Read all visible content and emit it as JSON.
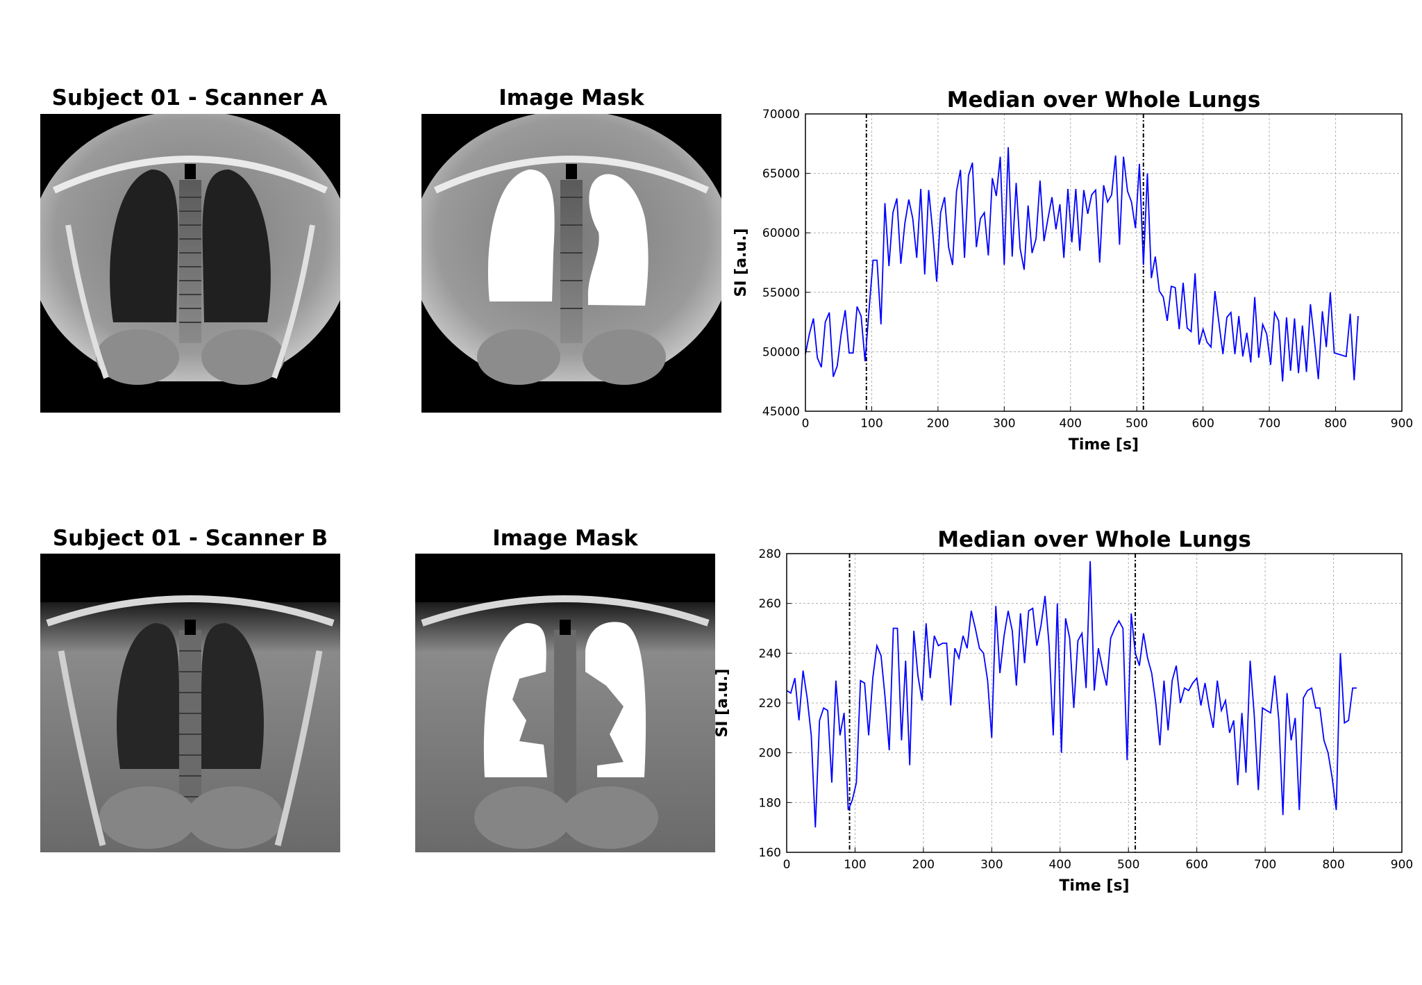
{
  "panels": [
    {
      "title": "Subject  01 - Scanner A",
      "mask_title": "Image Mask"
    },
    {
      "title": "Subject  01 - Scanner B",
      "mask_title": "Image Mask"
    }
  ],
  "colors": {
    "line": "#0000ff",
    "grid": "#b0b0b0",
    "marker": "#000000"
  },
  "chart_data": [
    {
      "type": "line",
      "title": "Median over Whole Lungs",
      "xlabel": "Time [s]",
      "ylabel": "SI [a.u.]",
      "xlim": [
        0,
        900
      ],
      "ylim": [
        45000,
        70000
      ],
      "xticks": [
        0,
        100,
        200,
        300,
        400,
        500,
        600,
        700,
        800,
        900
      ],
      "yticks": [
        45000,
        50000,
        55000,
        60000,
        65000,
        70000
      ],
      "grid": true,
      "vlines": [
        92,
        510
      ],
      "series": [
        {
          "x": [
            0,
            6,
            12,
            18,
            24,
            30,
            36,
            42,
            48,
            54,
            60,
            66,
            72,
            78,
            84,
            90,
            96,
            102,
            108,
            114,
            120,
            126,
            132,
            138,
            144,
            150,
            156,
            162,
            168,
            174,
            180,
            186,
            192,
            198,
            204,
            210,
            216,
            222,
            228,
            234,
            240,
            246,
            252,
            258,
            264,
            270,
            276,
            282,
            288,
            294,
            300,
            306,
            312,
            318,
            324,
            330,
            336,
            342,
            348,
            354,
            360,
            366,
            372,
            378,
            384,
            390,
            396,
            402,
            408,
            414,
            420,
            426,
            432,
            438,
            444,
            450,
            456,
            462,
            468,
            474,
            480,
            486,
            492,
            498,
            504,
            510,
            516,
            522,
            528,
            534,
            540,
            546,
            552,
            558,
            564,
            570,
            576,
            582,
            588,
            594,
            600,
            606,
            612,
            618,
            624,
            630,
            636,
            642,
            648,
            654,
            660,
            666,
            672,
            678,
            684,
            690,
            696,
            702,
            708,
            714,
            720,
            726,
            732,
            738,
            744,
            750,
            756,
            762,
            768,
            774,
            780,
            786,
            792,
            798,
            804,
            810,
            816,
            822,
            828,
            834
          ],
          "y": [
            49800,
            51500,
            52800,
            49500,
            48700,
            52500,
            53300,
            47900,
            48800,
            51500,
            53500,
            49900,
            49900,
            53800,
            53000,
            49200,
            53500,
            57700,
            57700,
            52300,
            62500,
            57200,
            61700,
            62900,
            57400,
            60800,
            62800,
            61200,
            57900,
            63700,
            56500,
            63600,
            60100,
            55900,
            61700,
            63000,
            58800,
            57300,
            63500,
            65300,
            57900,
            64800,
            65900,
            58800,
            61200,
            61700,
            58100,
            64600,
            63100,
            66400,
            57300,
            67200,
            58000,
            64200,
            58700,
            56900,
            62300,
            58300,
            59500,
            64400,
            59300,
            61200,
            63000,
            60300,
            62400,
            57900,
            63700,
            59200,
            63700,
            58500,
            63600,
            61600,
            63200,
            63600,
            57500,
            64000,
            62600,
            63200,
            66500,
            59000,
            66400,
            63500,
            62600,
            60400,
            65800,
            57300,
            65000,
            56200,
            58000,
            55100,
            54600,
            52600,
            55500,
            55400,
            51900,
            55800,
            52000,
            51700,
            56600,
            50600,
            51900,
            50800,
            50400,
            55100,
            52400,
            49800,
            52900,
            53300,
            49800,
            53000,
            49600,
            51600,
            49100,
            54600,
            49500,
            52300,
            51500,
            48900,
            53300,
            52600,
            47500,
            52900,
            48400,
            52800,
            48200,
            52200,
            48300,
            54000,
            51000,
            47700,
            53400,
            50400,
            55000,
            49900,
            49800,
            49700,
            49600,
            53200,
            47600,
            53000
          ]
        }
      ]
    },
    {
      "type": "line",
      "title": "Median over Whole Lungs",
      "xlabel": "Time [s]",
      "ylabel": "SI [a.u.]",
      "xlim": [
        0,
        900
      ],
      "ylim": [
        160,
        280
      ],
      "xticks": [
        0,
        100,
        200,
        300,
        400,
        500,
        600,
        700,
        800,
        900
      ],
      "yticks": [
        160,
        180,
        200,
        220,
        240,
        260,
        280
      ],
      "grid": true,
      "vlines": [
        92,
        510
      ],
      "series": [
        {
          "x": [
            0,
            6,
            12,
            18,
            24,
            30,
            36,
            42,
            48,
            54,
            60,
            66,
            72,
            78,
            84,
            90,
            96,
            102,
            108,
            114,
            120,
            126,
            132,
            138,
            144,
            150,
            156,
            162,
            168,
            174,
            180,
            186,
            192,
            198,
            204,
            210,
            216,
            222,
            228,
            234,
            240,
            246,
            252,
            258,
            264,
            270,
            276,
            282,
            288,
            294,
            300,
            306,
            312,
            318,
            324,
            330,
            336,
            342,
            348,
            354,
            360,
            366,
            372,
            378,
            384,
            390,
            396,
            402,
            408,
            414,
            420,
            426,
            432,
            438,
            444,
            450,
            456,
            462,
            468,
            474,
            480,
            486,
            492,
            498,
            504,
            510,
            516,
            522,
            528,
            534,
            540,
            546,
            552,
            558,
            564,
            570,
            576,
            582,
            588,
            594,
            600,
            606,
            612,
            618,
            624,
            630,
            636,
            642,
            648,
            654,
            660,
            666,
            672,
            678,
            684,
            690,
            696,
            702,
            708,
            714,
            720,
            726,
            732,
            738,
            744,
            750,
            756,
            762,
            768,
            774,
            780,
            786,
            792,
            798,
            804,
            810,
            816,
            822,
            828,
            834
          ],
          "y": [
            225,
            224,
            230,
            213,
            233,
            222,
            207,
            170,
            213,
            218,
            217,
            188,
            229,
            207,
            216,
            177,
            181,
            188,
            229,
            228,
            207,
            230,
            243,
            239,
            222,
            201,
            250,
            250,
            205,
            237,
            195,
            249,
            231,
            221,
            252,
            230,
            247,
            243,
            244,
            244,
            219,
            242,
            238,
            247,
            242,
            257,
            250,
            242,
            240,
            229,
            206,
            259,
            232,
            247,
            257,
            249,
            227,
            256,
            236,
            257,
            258,
            243,
            251,
            263,
            243,
            207,
            260,
            200,
            254,
            246,
            218,
            245,
            248,
            226,
            277,
            225,
            242,
            234,
            227,
            246,
            250,
            253,
            250,
            197,
            256,
            240,
            235,
            248,
            238,
            232,
            220,
            203,
            229,
            209,
            229,
            235,
            220,
            226,
            225,
            228,
            230,
            219,
            228,
            218,
            210,
            229,
            217,
            221,
            208,
            213,
            187,
            216,
            192,
            237,
            215,
            185,
            218,
            217,
            216,
            231,
            213,
            175,
            224,
            205,
            214,
            177,
            222,
            225,
            226,
            218,
            218,
            205,
            200,
            190,
            177,
            240,
            212,
            213,
            226,
            226
          ]
        }
      ]
    }
  ]
}
